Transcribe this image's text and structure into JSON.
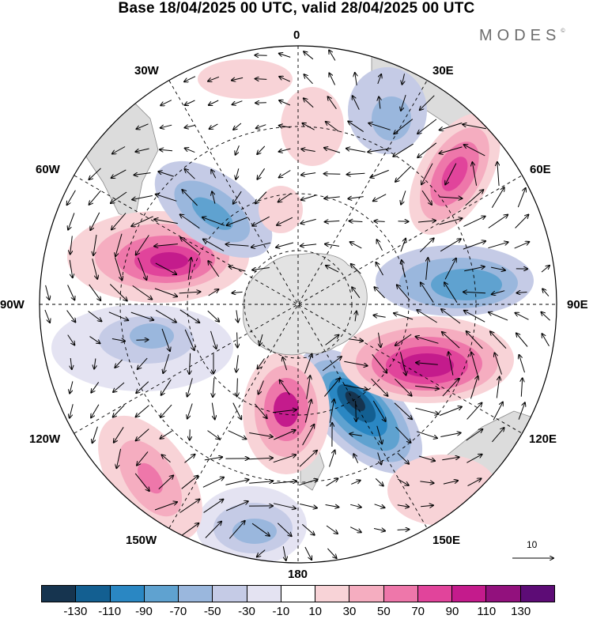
{
  "title": "Base 18/04/2025 00 UTC, valid 28/04/2025 00 UTC",
  "brand": "MODES",
  "brand_mark": "©",
  "longitude_labels": {
    "lon_0": "0",
    "lon_30e": "30E",
    "lon_60e": "60E",
    "lon_90e": "90E",
    "lon_120e": "120E",
    "lon_150e": "150E",
    "lon_180": "180",
    "lon_150w": "150W",
    "lon_120w": "120W",
    "lon_90w": "90W",
    "lon_60w": "60W",
    "lon_30w": "30W"
  },
  "reference_vector": {
    "value": "10"
  },
  "colorbar": {
    "colors": [
      "#16344f",
      "#135f91",
      "#2a87c3",
      "#5fa2d0",
      "#9ab7dd",
      "#c5cbe6",
      "#e4e3f2",
      "#ffffff",
      "#f8d3d7",
      "#f5adc0",
      "#ee77aa",
      "#e1449b",
      "#c41b8c",
      "#92117d",
      "#5d0c76"
    ],
    "ticks": [
      "-130",
      "-110",
      "-90",
      "-70",
      "-50",
      "-30",
      "-10",
      "10",
      "30",
      "50",
      "70",
      "90",
      "110",
      "130"
    ]
  },
  "map": {
    "projection": "south-polar-stereographic",
    "pole_landmass": "Antarctica",
    "anomaly_centers": [
      {
        "name": "negative-center-sw-pacific",
        "value": -110
      },
      {
        "name": "positive-center-south-indian",
        "value": 110
      },
      {
        "name": "positive-center-south-atlantic-west",
        "value": 110
      },
      {
        "name": "positive-center-ross-sea-north",
        "value": 90
      },
      {
        "name": "positive-center-south-africa-east",
        "value": 90
      },
      {
        "name": "negative-center-indian",
        "value": -70
      },
      {
        "name": "negative-center-atlantic",
        "value": -50
      },
      {
        "name": "negative-center-southeast-pacific",
        "value": -50
      },
      {
        "name": "negative-center-south-pacific",
        "value": -50
      },
      {
        "name": "positive-center-south-pacific-east",
        "value": 50
      }
    ]
  }
}
